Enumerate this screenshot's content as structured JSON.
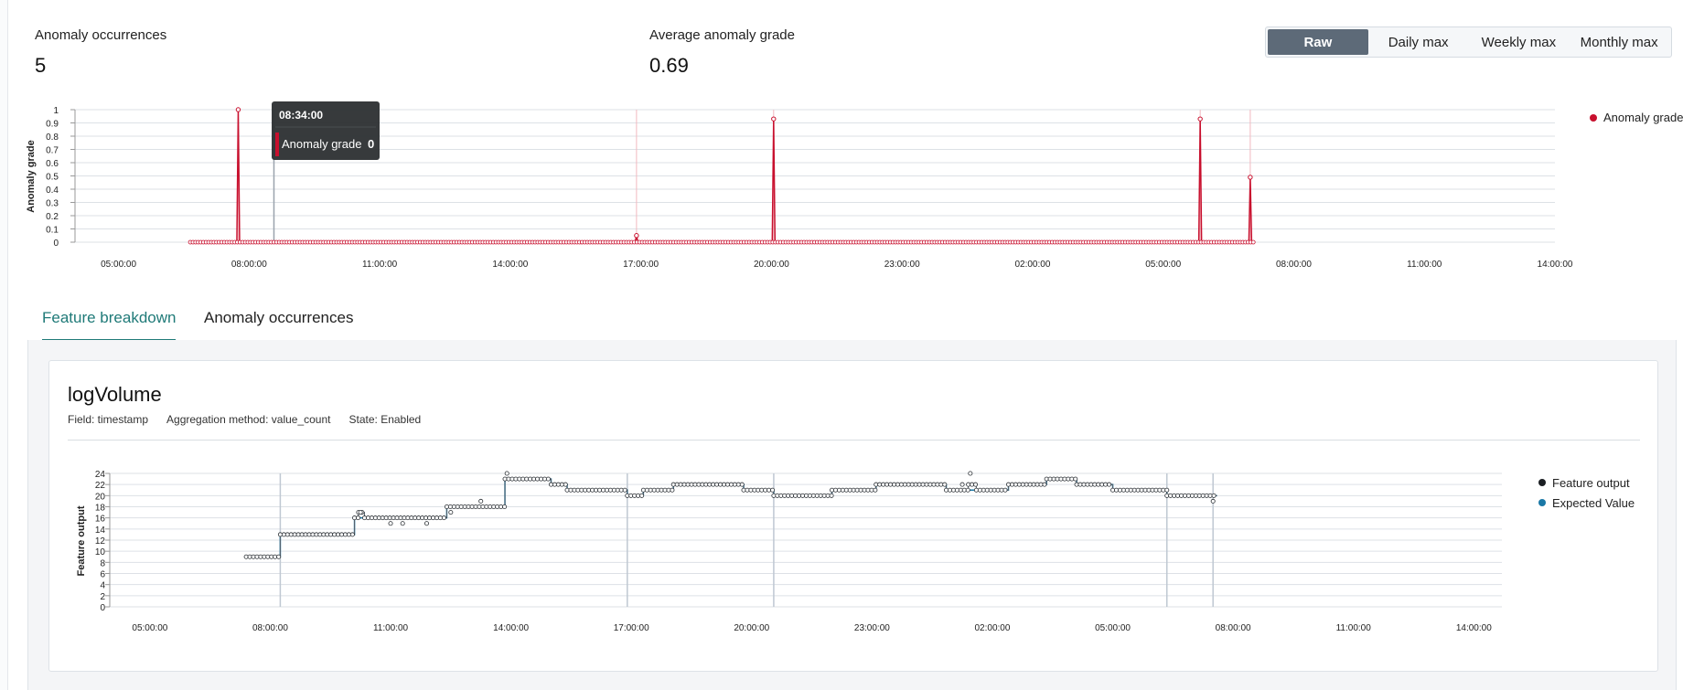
{
  "metrics": {
    "occurrences": {
      "label": "Anomaly occurrences",
      "value": "5"
    },
    "average_grade": {
      "label": "Average anomaly grade",
      "value": "0.69"
    }
  },
  "resolution_buttons": [
    {
      "label": "Raw",
      "active": true
    },
    {
      "label": "Daily max",
      "active": false
    },
    {
      "label": "Weekly max",
      "active": false
    },
    {
      "label": "Monthly max",
      "active": false
    }
  ],
  "tooltip": {
    "time": "08:34:00",
    "label": "Anomaly grade",
    "value": "0"
  },
  "tabs": [
    {
      "label": "Feature breakdown",
      "active": true
    },
    {
      "label": "Anomaly occurrences",
      "active": false
    }
  ],
  "feature": {
    "name": "logVolume",
    "field": "Field: timestamp",
    "aggregation": "Aggregation method: value_count",
    "state": "State: Enabled"
  },
  "colors": {
    "anomaly": "#c8102e",
    "feature": "#1b1f23",
    "expected": "#1a78a6",
    "accent": "#1f7a78",
    "active_button": "#5d6a78"
  },
  "chart_data": [
    {
      "type": "line",
      "title": "",
      "xlabel": "",
      "ylabel": "Anomaly grade",
      "ylim": [
        0,
        1
      ],
      "y_ticks": [
        "0",
        "0.1",
        "0.2",
        "0.3",
        "0.4",
        "0.5",
        "0.6",
        "0.7",
        "0.8",
        "0.9",
        "1"
      ],
      "x_ticks": [
        "05:00:00",
        "08:00:00",
        "11:00:00",
        "14:00:00",
        "17:00:00",
        "20:00:00",
        "23:00:00",
        "02:00:00",
        "05:00:00",
        "08:00:00",
        "11:00:00",
        "14:00:00"
      ],
      "x_range_hours": [
        4.0,
        38.0
      ],
      "grid": true,
      "legend": "top-right",
      "series": [
        {
          "name": "Anomaly grade",
          "baseline_range_hours": [
            6.65,
            31.1
          ],
          "points": [
            {
              "x": 7.75,
              "y": 1.0
            },
            {
              "x": 16.9,
              "y": 0.05
            },
            {
              "x": 20.05,
              "y": 0.93
            },
            {
              "x": 29.85,
              "y": 0.93
            },
            {
              "x": 31.0,
              "y": 0.49
            }
          ]
        }
      ],
      "anomaly_markers_hours": [
        7.75,
        16.9,
        20.05,
        29.85,
        31.0
      ],
      "hover_marker_hours": 8.57
    },
    {
      "type": "line",
      "title": "",
      "xlabel": "",
      "ylabel": "Feature output",
      "ylim": [
        0,
        24
      ],
      "y_ticks": [
        "0",
        "2",
        "4",
        "6",
        "8",
        "10",
        "12",
        "14",
        "16",
        "18",
        "20",
        "22",
        "24"
      ],
      "x_ticks": [
        "05:00:00",
        "08:00:00",
        "11:00:00",
        "14:00:00",
        "17:00:00",
        "20:00:00",
        "23:00:00",
        "02:00:00",
        "05:00:00",
        "08:00:00",
        "11:00:00",
        "14:00:00"
      ],
      "x_range_hours": [
        4.0,
        38.7
      ],
      "grid": true,
      "legend": "top-right",
      "anomaly_markers_hours": [
        8.25,
        16.9,
        20.55,
        30.35,
        31.5
      ],
      "series": [
        {
          "name": "Feature output",
          "steps": [
            [
              7.4,
              9
            ],
            [
              8.25,
              13
            ],
            [
              10.1,
              16
            ],
            [
              10.2,
              17
            ],
            [
              10.35,
              16
            ],
            [
              12.4,
              18
            ],
            [
              13.85,
              23
            ],
            [
              15.0,
              22
            ],
            [
              15.4,
              21
            ],
            [
              16.9,
              20
            ],
            [
              17.3,
              21
            ],
            [
              18.05,
              22
            ],
            [
              19.8,
              21
            ],
            [
              20.55,
              20
            ],
            [
              22.0,
              21
            ],
            [
              23.1,
              22
            ],
            [
              24.85,
              21
            ],
            [
              25.4,
              22
            ],
            [
              25.6,
              21
            ],
            [
              26.4,
              22
            ],
            [
              27.35,
              23
            ],
            [
              28.1,
              22
            ],
            [
              29.0,
              21
            ],
            [
              30.35,
              20
            ],
            [
              31.6,
              20
            ]
          ],
          "outliers": [
            {
              "x": 10.25,
              "y": 17
            },
            {
              "x": 11.0,
              "y": 15
            },
            {
              "x": 11.3,
              "y": 15
            },
            {
              "x": 11.9,
              "y": 15
            },
            {
              "x": 12.5,
              "y": 17
            },
            {
              "x": 13.25,
              "y": 19
            },
            {
              "x": 13.9,
              "y": 24
            },
            {
              "x": 25.45,
              "y": 24
            },
            {
              "x": 25.25,
              "y": 22
            },
            {
              "x": 31.5,
              "y": 19
            }
          ]
        },
        {
          "name": "Expected Value",
          "steps": [
            [
              7.4,
              9
            ],
            [
              8.25,
              13
            ],
            [
              10.1,
              16
            ],
            [
              12.4,
              18
            ],
            [
              13.85,
              23
            ],
            [
              15.0,
              22
            ],
            [
              15.4,
              21
            ],
            [
              16.9,
              20
            ],
            [
              17.3,
              21
            ],
            [
              18.05,
              22
            ],
            [
              19.8,
              21
            ],
            [
              20.55,
              20
            ],
            [
              22.0,
              21
            ],
            [
              23.1,
              22
            ],
            [
              24.85,
              21
            ],
            [
              26.4,
              22
            ],
            [
              27.35,
              23
            ],
            [
              28.1,
              22
            ],
            [
              29.0,
              21
            ],
            [
              30.35,
              20
            ],
            [
              31.6,
              20
            ]
          ]
        }
      ]
    }
  ]
}
